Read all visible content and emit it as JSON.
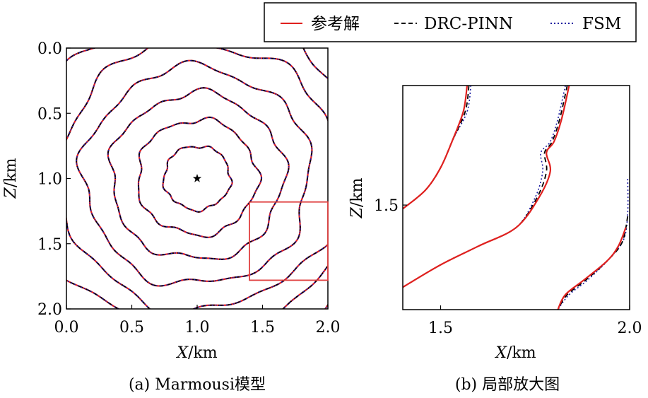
{
  "legend": {
    "placement": "top-right",
    "entries": [
      {
        "label": "参考解",
        "color": "#e0201e",
        "dash": "solid"
      },
      {
        "label": "DRC-PINN",
        "color": "#000000",
        "dash": "dashed"
      },
      {
        "label": "FSM",
        "color": "#1a1aa0",
        "dash": "dotted"
      }
    ]
  },
  "chart_data": [
    {
      "type": "line",
      "caption": "(a) Marmousi模型",
      "xlabel_var": "X",
      "xlabel_unit": "/km",
      "ylabel_var": "Z",
      "ylabel_unit": "/km",
      "xlim": [
        0.0,
        2.0
      ],
      "ylim": [
        2.0,
        0.0
      ],
      "xticks": [
        "0.0",
        "0.5",
        "1.0",
        "1.5",
        "2.0"
      ],
      "yticks": [
        "0.0",
        "0.5",
        "1.0",
        "1.5",
        "2.0"
      ],
      "source": {
        "x": 1.0,
        "z": 1.0,
        "marker": "star"
      },
      "zoom_box": {
        "x": [
          1.4,
          2.0
        ],
        "z": [
          1.18,
          1.78
        ],
        "color": "#e04040"
      },
      "contour_radii": [
        0.25,
        0.45,
        0.65,
        0.85,
        1.05,
        1.25,
        1.45
      ],
      "series": [
        {
          "name": "参考解",
          "color": "#e0201e"
        },
        {
          "name": "DRC-PINN",
          "color": "#000000"
        },
        {
          "name": "FSM",
          "color": "#1a1aa0"
        }
      ]
    },
    {
      "type": "line",
      "caption": "(b) 局部放大图",
      "xlabel_var": "X",
      "xlabel_unit": "/km",
      "ylabel_var": "Z",
      "ylabel_unit": "/km",
      "xlim": [
        1.4,
        2.0
      ],
      "ylim": [
        1.78,
        1.18
      ],
      "xticks": [
        {
          "value": 1.5,
          "label": "1.5"
        },
        {
          "value": 2.0,
          "label": "2.0"
        }
      ],
      "yticks": [
        {
          "value": 1.5,
          "label": "1.5"
        }
      ],
      "series": [
        {
          "name": "参考解",
          "color": "#e0201e",
          "curves": [
            [
              [
                1.57,
                1.18
              ],
              [
                1.56,
                1.25
              ],
              [
                1.53,
                1.33
              ],
              [
                1.5,
                1.4
              ],
              [
                1.46,
                1.46
              ],
              [
                1.4,
                1.51
              ]
            ],
            [
              [
                1.84,
                1.18
              ],
              [
                1.82,
                1.27
              ],
              [
                1.8,
                1.33
              ],
              [
                1.78,
                1.36
              ],
              [
                1.79,
                1.41
              ],
              [
                1.76,
                1.48
              ],
              [
                1.7,
                1.56
              ],
              [
                1.6,
                1.61
              ],
              [
                1.5,
                1.66
              ],
              [
                1.4,
                1.72
              ]
            ],
            [
              [
                1.99,
                1.56
              ],
              [
                1.97,
                1.61
              ],
              [
                1.94,
                1.65
              ],
              [
                1.88,
                1.7
              ],
              [
                1.83,
                1.74
              ],
              [
                1.81,
                1.78
              ]
            ]
          ]
        },
        {
          "name": "DRC-PINN",
          "color": "#000000",
          "curves": [
            [
              [
                1.575,
                1.18
              ],
              [
                1.565,
                1.25
              ],
              [
                1.53,
                1.33
              ],
              [
                1.5,
                1.4
              ],
              [
                1.46,
                1.46
              ],
              [
                1.4,
                1.51
              ]
            ],
            [
              [
                1.835,
                1.18
              ],
              [
                1.815,
                1.27
              ],
              [
                1.795,
                1.33
              ],
              [
                1.775,
                1.36
              ],
              [
                1.78,
                1.41
              ],
              [
                1.755,
                1.48
              ],
              [
                1.7,
                1.56
              ],
              [
                1.6,
                1.61
              ],
              [
                1.5,
                1.66
              ],
              [
                1.4,
                1.72
              ]
            ],
            [
              [
                1.995,
                1.53
              ],
              [
                1.98,
                1.6
              ],
              [
                1.94,
                1.65
              ],
              [
                1.885,
                1.7
              ],
              [
                1.835,
                1.74
              ],
              [
                1.81,
                1.78
              ]
            ]
          ]
        },
        {
          "name": "FSM",
          "color": "#1a1aa0",
          "curves": [
            [
              [
                1.58,
                1.18
              ],
              [
                1.57,
                1.25
              ],
              [
                1.535,
                1.32
              ],
              [
                1.5,
                1.4
              ],
              [
                1.46,
                1.46
              ],
              [
                1.4,
                1.51
              ]
            ],
            [
              [
                1.83,
                1.18
              ],
              [
                1.81,
                1.27
              ],
              [
                1.79,
                1.33
              ],
              [
                1.765,
                1.36
              ],
              [
                1.77,
                1.41
              ],
              [
                1.75,
                1.48
              ],
              [
                1.7,
                1.56
              ],
              [
                1.6,
                1.61
              ],
              [
                1.5,
                1.66
              ],
              [
                1.4,
                1.72
              ]
            ],
            [
              [
                1.995,
                1.43
              ],
              [
                1.995,
                1.52
              ],
              [
                1.985,
                1.59
              ],
              [
                1.95,
                1.64
              ],
              [
                1.89,
                1.7
              ],
              [
                1.84,
                1.74
              ],
              [
                1.81,
                1.78
              ]
            ]
          ]
        }
      ]
    }
  ]
}
